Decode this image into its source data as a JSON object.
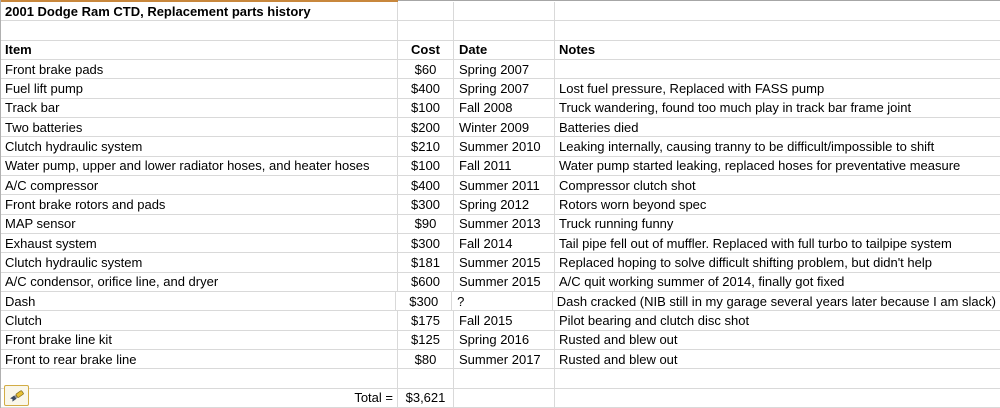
{
  "sheet": {
    "title": "2001 Dodge Ram CTD, Replacement parts history",
    "columns": {
      "item": "Item",
      "cost": "Cost",
      "date": "Date",
      "notes": "Notes"
    },
    "rows": [
      {
        "item": "Front brake pads",
        "cost": "$60",
        "date": "Spring 2007",
        "notes": ""
      },
      {
        "item": "Fuel lift pump",
        "cost": "$400",
        "date": "Spring 2007",
        "notes": "Lost fuel pressure, Replaced with FASS pump"
      },
      {
        "item": "Track bar",
        "cost": "$100",
        "date": "Fall 2008",
        "notes": "Truck wandering, found too much play in track bar frame joint"
      },
      {
        "item": "Two batteries",
        "cost": "$200",
        "date": "Winter 2009",
        "notes": "Batteries died"
      },
      {
        "item": "Clutch hydraulic system",
        "cost": "$210",
        "date": "Summer 2010",
        "notes": "Leaking internally, causing tranny to be difficult/impossible to shift"
      },
      {
        "item": "Water pump, upper and lower radiator hoses, and heater hoses",
        "cost": "$100",
        "date": "Fall 2011",
        "notes": "Water pump started leaking, replaced hoses for preventative measure"
      },
      {
        "item": "A/C compressor",
        "cost": "$400",
        "date": "Summer 2011",
        "notes": "Compressor clutch shot"
      },
      {
        "item": "Front brake rotors and pads",
        "cost": "$300",
        "date": "Spring 2012",
        "notes": "Rotors worn beyond spec"
      },
      {
        "item": "MAP sensor",
        "cost": "$90",
        "date": "Summer 2013",
        "notes": "Truck running funny"
      },
      {
        "item": "Exhaust system",
        "cost": "$300",
        "date": "Fall 2014",
        "notes": "Tail pipe fell out of muffler.  Replaced with full turbo to tailpipe system"
      },
      {
        "item": "Clutch hydraulic system",
        "cost": "$181",
        "date": "Summer 2015",
        "notes": "Replaced hoping to solve difficult shifting problem, but didn't help"
      },
      {
        "item": "A/C condensor, orifice line, and dryer",
        "cost": "$600",
        "date": "Summer 2015",
        "notes": "A/C quit working summer of 2014, finally got fixed"
      },
      {
        "item": "Dash",
        "cost": "$300",
        "date": "?",
        "notes": "Dash cracked (NIB still in my garage several years later because I am slack)"
      },
      {
        "item": "Clutch",
        "cost": "$175",
        "date": "Fall 2015",
        "notes": "Pilot bearing and clutch disc shot"
      },
      {
        "item": "Front brake line kit",
        "cost": "$125",
        "date": "Spring 2016",
        "notes": "Rusted and blew out"
      },
      {
        "item": "Front to rear brake line",
        "cost": "$80",
        "date": "Summer 2017",
        "notes": "Rusted and blew out"
      }
    ],
    "total": {
      "label": "Total =",
      "value": "$3,621"
    }
  },
  "icons": {
    "brush": "brush-icon"
  },
  "colors": {
    "accent_border": "#C8873C",
    "gridline": "#D9D9D9",
    "top_edge": "#A6A6A6",
    "icon_border": "#D2AC45"
  }
}
